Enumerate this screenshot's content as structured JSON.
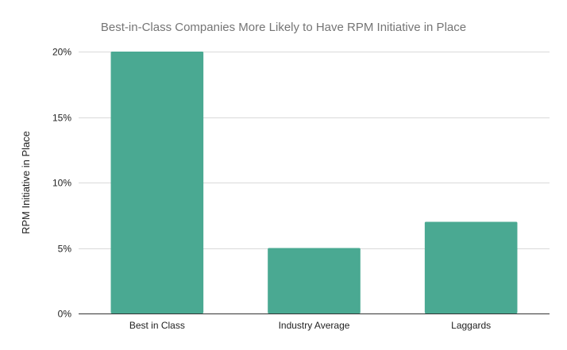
{
  "chart_data": {
    "type": "bar",
    "title": "Best-in-Class Companies More Likely to Have RPM Initiative in Place",
    "xlabel": "",
    "ylabel": "RPM Initiative in Place",
    "categories": [
      "Best in Class",
      "Industry Average",
      "Laggards"
    ],
    "values": [
      0.2,
      0.05,
      0.07
    ],
    "ylim": [
      0,
      0.2
    ],
    "yticks": [
      0,
      0.05,
      0.1,
      0.15,
      0.2
    ],
    "ytick_labels": [
      "0%",
      "5%",
      "10%",
      "15%",
      "20%"
    ],
    "grid": true,
    "legend": "none",
    "bar_color": "#4aa992",
    "gridline_color": "#d9d9d9",
    "axis_color": "#333333"
  }
}
